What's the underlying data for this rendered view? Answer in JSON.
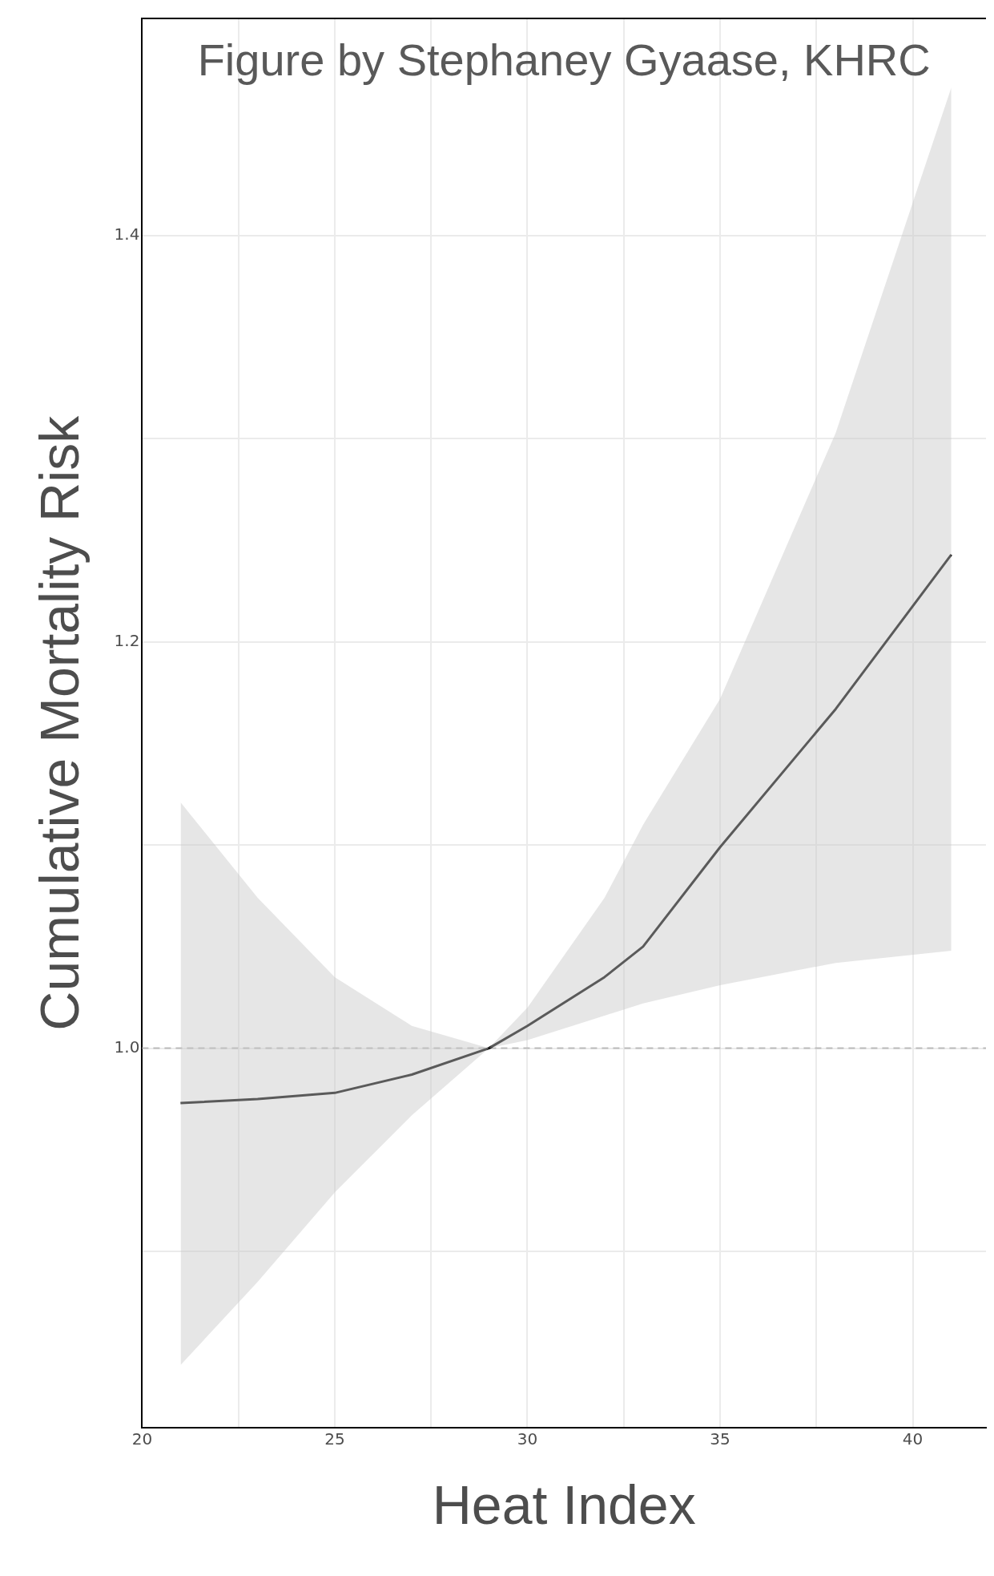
{
  "chart_data": {
    "type": "line",
    "xlabel": "Heat Index",
    "ylabel": "Cumulative Mortality Risk",
    "annotations": [
      "Figure by Stephaney Gyaase, KHRC"
    ],
    "xlim": [
      20,
      41.9
    ],
    "xticks": [
      20,
      {
        "value": 22.5,
        "label": null
      },
      25,
      {
        "value": 27.5,
        "label": null
      },
      30,
      {
        "value": 32.5,
        "label": null
      },
      35,
      {
        "value": 37.5,
        "label": null
      },
      40
    ],
    "ylim": [
      0.813,
      1.507
    ],
    "yticks": [
      {
        "value": 0.9,
        "label": null
      },
      {
        "value": 1.0,
        "label": "1.0"
      },
      {
        "value": 1.1,
        "label": null
      },
      {
        "value": 1.2,
        "label": "1.2"
      },
      {
        "value": 1.3,
        "label": null
      },
      {
        "value": 1.4,
        "label": "1.4"
      }
    ],
    "grid": true,
    "legend": false,
    "marker": "none",
    "line_style": "solid",
    "ref_lines": [
      {
        "axis": "y",
        "value": 1.0,
        "color": "#bbbbbb",
        "line_style": "dashed"
      }
    ],
    "series": [
      {
        "color": "#000000",
        "x": [
          21,
          23,
          25,
          27,
          29,
          30,
          32,
          33,
          35,
          38,
          41
        ],
        "values": [
          0.973,
          0.975,
          0.978,
          0.987,
          1.0,
          1.011,
          1.035,
          1.05,
          1.099,
          1.167,
          1.243
        ],
        "lower": [
          0.844,
          0.885,
          0.929,
          0.967,
          1.0,
          1.004,
          1.016,
          1.022,
          1.031,
          1.042,
          1.048
        ],
        "upper": [
          1.121,
          1.074,
          1.035,
          1.011,
          1.0,
          1.02,
          1.074,
          1.11,
          1.172,
          1.303,
          1.473
        ]
      }
    ]
  }
}
